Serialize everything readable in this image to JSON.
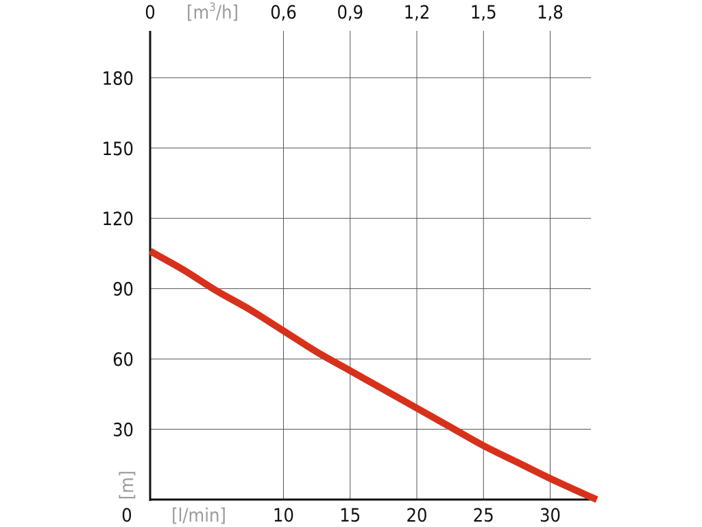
{
  "chart_data": {
    "type": "line",
    "title": "",
    "xlabel": "[l/min]",
    "x2label": "[m³/h]",
    "ylabel": "[m]",
    "xlim": [
      0,
      33
    ],
    "ylim": [
      0,
      200
    ],
    "x_ticks": [
      0,
      10,
      15,
      20,
      25,
      30
    ],
    "x_tick_labels": [
      "0",
      "10",
      "15",
      "20",
      "25",
      "30"
    ],
    "x2_ticks": [
      0,
      10,
      15,
      20,
      25,
      30
    ],
    "x2_tick_labels": [
      "0",
      "0,6",
      "0,9",
      "1,2",
      "1,5",
      "1,8"
    ],
    "y_ticks": [
      0,
      30,
      60,
      90,
      120,
      150,
      180
    ],
    "y_tick_labels": [
      "0",
      "30",
      "60",
      "90",
      "120",
      "150",
      "180"
    ],
    "grid": true,
    "series": [
      {
        "color": "#d7311c",
        "x": [
          0,
          2.5,
          5,
          7.5,
          10,
          12.5,
          15,
          17.5,
          20,
          22.5,
          25,
          27.5,
          30,
          32.5,
          33.5
        ],
        "y": [
          106,
          98,
          89,
          81,
          72,
          63,
          55,
          47,
          39,
          31,
          23,
          16,
          9,
          2.5,
          0
        ]
      }
    ]
  }
}
